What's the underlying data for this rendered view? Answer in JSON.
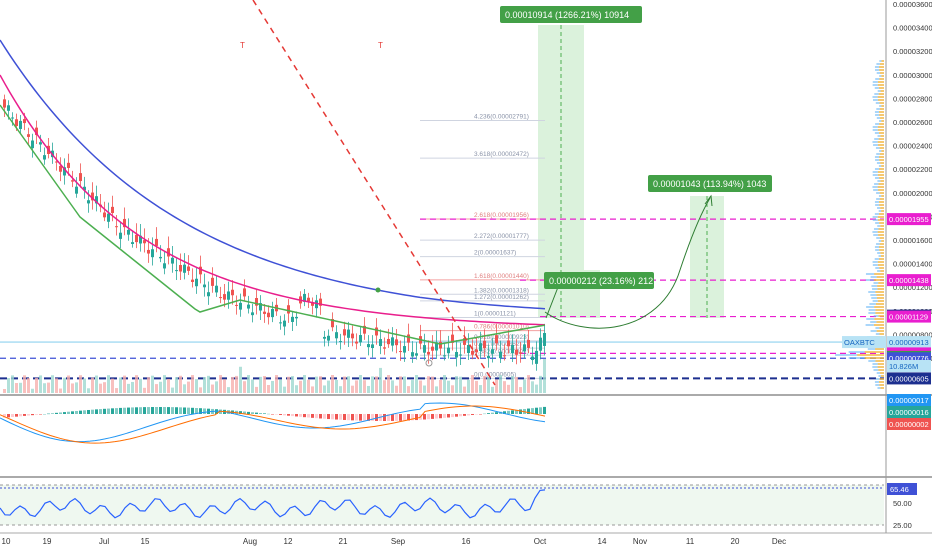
{
  "chart_data": {
    "type": "candlestick",
    "symbol": "OAXBTC",
    "last_price": "0.00000913",
    "volume_label": "10.826M",
    "x_axis": {
      "ticks": [
        "10",
        "19",
        "Jul",
        "15",
        "Aug",
        "12",
        "21",
        "Sep",
        "16",
        "Oct",
        "14",
        "Nov",
        "11",
        "20",
        "Dec"
      ]
    },
    "price_axis": {
      "ticks": [
        "0.00003600",
        "0.00003400",
        "0.00003200",
        "0.00003000",
        "0.00002800",
        "0.00002600",
        "0.00002400",
        "0.00002200",
        "0.00002000",
        "0.00001800",
        "0.00001600",
        "0.00001400",
        "0.00001200",
        "0.00001000",
        "0.00000800",
        "0.00000600"
      ]
    },
    "price_badges": [
      {
        "value": "0.00001955",
        "color": "#e91ecf"
      },
      {
        "value": "0.00001438",
        "color": "#e91ecf"
      },
      {
        "value": "0.00001137",
        "color": "#1c2f8f"
      },
      {
        "value": "0.00001129",
        "color": "#e91ecf"
      },
      {
        "value": "0.00000913",
        "color": "#b8e3f5"
      },
      {
        "value": "0.00000817",
        "color": "#e91ecf"
      },
      {
        "value": "0.00000787",
        "color": "#3c9a4a"
      },
      {
        "value": "0.00000776",
        "color": "#3f51d6"
      },
      {
        "value": "0.00000605",
        "color": "#1c2f8f"
      }
    ],
    "fib_levels": [
      {
        "label": "4.236(0.00002791)",
        "price": 2.791e-05
      },
      {
        "label": "3.618(0.00002472)",
        "price": 2.472e-05
      },
      {
        "label": "2.618(0.00001956)",
        "price": 1.956e-05
      },
      {
        "label": "2.272(0.00001777)",
        "price": 1.777e-05
      },
      {
        "label": "2(0.00001637)",
        "price": 1.637e-05
      },
      {
        "label": "1.618(0.00001440)",
        "price": 1.44e-05
      },
      {
        "label": "1.382(0.00001318)",
        "price": 1.318e-05
      },
      {
        "label": "1.272(0.00001262)",
        "price": 1.262e-05
      },
      {
        "label": "1(0.00001121)",
        "price": 1.121e-05
      },
      {
        "label": "0.786(0.00001010)",
        "price": 1.01e-05
      },
      {
        "label": "0.618(0.00000923)",
        "price": 9.23e-06
      },
      {
        "label": "0.5(0.00000862)",
        "price": 8.62e-06
      },
      {
        "label": "0.382(0.00000801)",
        "price": 8.01e-06
      },
      {
        "label": "0(0.00000605)",
        "price": 6.05e-06
      }
    ],
    "targets": [
      {
        "text": "0.00010914 (1266.21%) 10914"
      },
      {
        "text": "0.00001043 (113.94%) 1043"
      },
      {
        "text": "0.00000212 (23.16%) 212"
      }
    ],
    "macd": {
      "badges": [
        {
          "value": "0.00000017",
          "color": "#2196f3"
        },
        {
          "value": "0.00000016",
          "color": "#26a69a"
        },
        {
          "value": "0.00000002",
          "color": "#ef5350"
        }
      ]
    },
    "rsi": {
      "value": "65.46",
      "ticks": [
        "50.00",
        "25.00"
      ]
    },
    "colors": {
      "candle_up": "#26a69a",
      "candle_down": "#ef5350",
      "ma_short": "#4caf50",
      "ma_mid": "#e91e8c",
      "ma_long": "#3f51d6",
      "trend_line": "#e53935"
    }
  }
}
